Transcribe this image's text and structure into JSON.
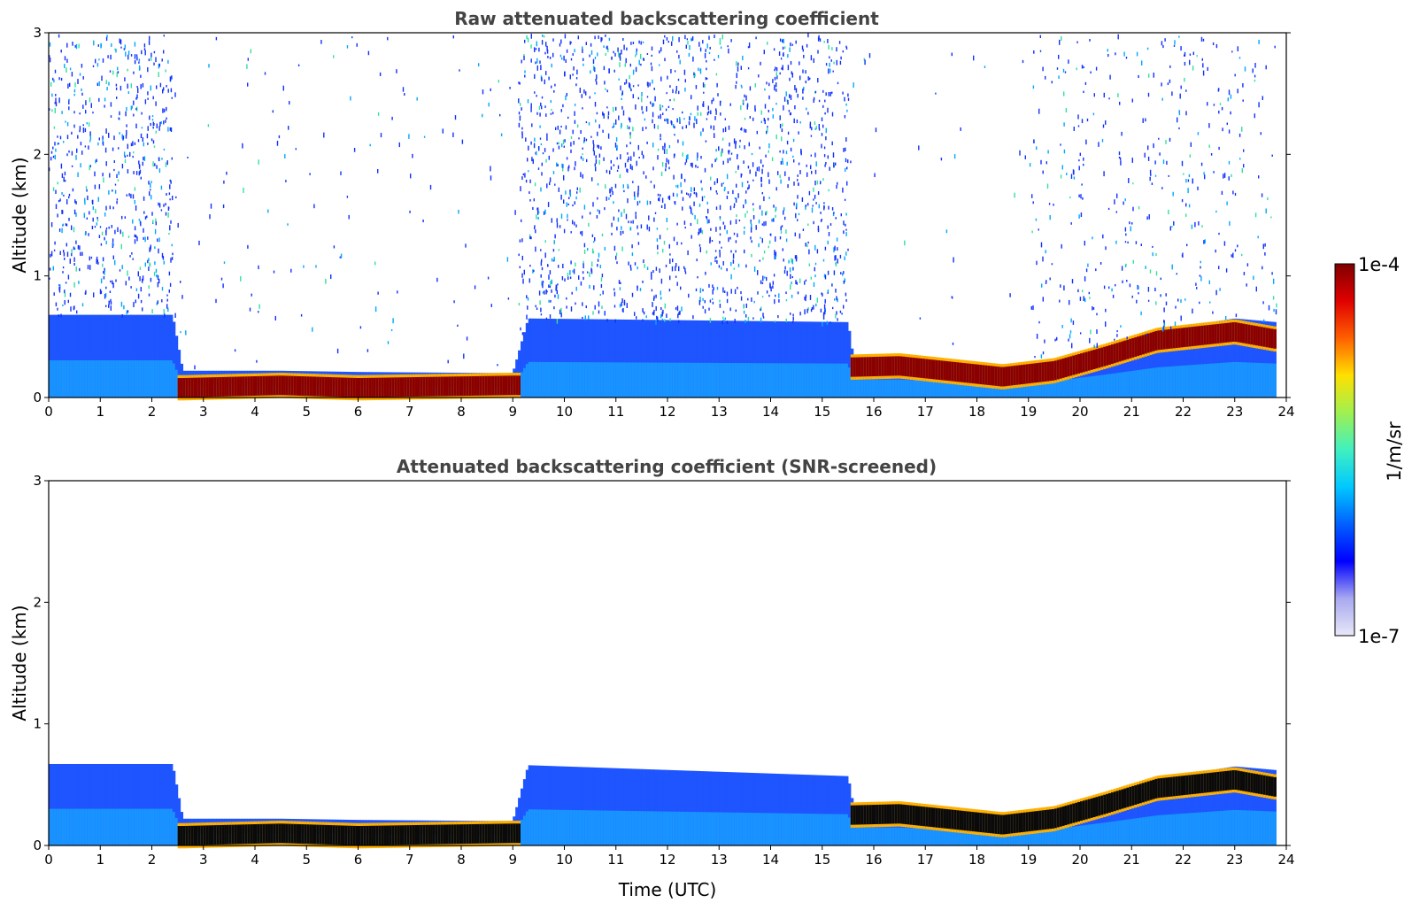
{
  "chart_data": [
    {
      "type": "heatmap",
      "title": "Raw attenuated backscattering coefficient",
      "xlabel": "",
      "ylabel": "Altitude (km)",
      "xlim": [
        0,
        24
      ],
      "ylim": [
        0,
        3
      ],
      "xticks": [
        "0",
        "1",
        "2",
        "3",
        "4",
        "5",
        "6",
        "7",
        "8",
        "9",
        "10",
        "11",
        "12",
        "13",
        "14",
        "15",
        "16",
        "17",
        "18",
        "19",
        "20",
        "21",
        "22",
        "23",
        "24"
      ],
      "yticks": [
        "0",
        "1",
        "2",
        "3"
      ],
      "layers": [
        {
          "t": 0.0,
          "top": 0.68,
          "peak": null
        },
        {
          "t": 2.4,
          "top": 0.68,
          "peak": null
        },
        {
          "t": 2.6,
          "top": 0.22,
          "peak": 0.08
        },
        {
          "t": 4.5,
          "top": 0.22,
          "peak": 0.1
        },
        {
          "t": 6.0,
          "top": 0.21,
          "peak": 0.08
        },
        {
          "t": 9.0,
          "top": 0.2,
          "peak": 0.1
        },
        {
          "t": 9.3,
          "top": 0.65,
          "peak": null
        },
        {
          "t": 15.5,
          "top": 0.62,
          "peak": null
        },
        {
          "t": 15.6,
          "top": 0.33,
          "peak": 0.25
        },
        {
          "t": 16.5,
          "top": 0.33,
          "peak": 0.26
        },
        {
          "t": 18.5,
          "top": 0.24,
          "peak": 0.17
        },
        {
          "t": 19.5,
          "top": 0.3,
          "peak": 0.22
        },
        {
          "t": 20.5,
          "top": 0.42,
          "peak": 0.34
        },
        {
          "t": 21.5,
          "top": 0.55,
          "peak": 0.47
        },
        {
          "t": 23.0,
          "top": 0.65,
          "peak": 0.54
        },
        {
          "t": 23.8,
          "top": 0.62,
          "peak": 0.48
        }
      ]
    },
    {
      "type": "heatmap",
      "title": "Attenuated backscattering coefficient (SNR-screened)",
      "xlabel": "Time (UTC)",
      "ylabel": "Altitude (km)",
      "xlim": [
        0,
        24
      ],
      "ylim": [
        0,
        3
      ],
      "xticks": [
        "0",
        "1",
        "2",
        "3",
        "4",
        "5",
        "6",
        "7",
        "8",
        "9",
        "10",
        "11",
        "12",
        "13",
        "14",
        "15",
        "16",
        "17",
        "18",
        "19",
        "20",
        "21",
        "22",
        "23",
        "24"
      ],
      "yticks": [
        "0",
        "1",
        "2",
        "3"
      ],
      "layers": [
        {
          "t": 0.0,
          "top": 0.67,
          "peak": null
        },
        {
          "t": 2.4,
          "top": 0.67,
          "peak": null
        },
        {
          "t": 2.6,
          "top": 0.22,
          "peak": 0.08
        },
        {
          "t": 4.5,
          "top": 0.22,
          "peak": 0.1
        },
        {
          "t": 6.0,
          "top": 0.21,
          "peak": 0.08
        },
        {
          "t": 9.0,
          "top": 0.2,
          "peak": 0.1
        },
        {
          "t": 9.3,
          "top": 0.66,
          "peak": null
        },
        {
          "t": 15.5,
          "top": 0.57,
          "peak": null
        },
        {
          "t": 15.6,
          "top": 0.33,
          "peak": 0.25
        },
        {
          "t": 16.5,
          "top": 0.33,
          "peak": 0.26
        },
        {
          "t": 18.5,
          "top": 0.24,
          "peak": 0.17
        },
        {
          "t": 19.5,
          "top": 0.3,
          "peak": 0.22
        },
        {
          "t": 20.5,
          "top": 0.42,
          "peak": 0.34
        },
        {
          "t": 21.5,
          "top": 0.55,
          "peak": 0.47
        },
        {
          "t": 23.0,
          "top": 0.65,
          "peak": 0.54
        },
        {
          "t": 23.8,
          "top": 0.62,
          "peak": 0.48
        }
      ]
    }
  ],
  "colorbar": {
    "label": "1/m/sr",
    "max_label": "1e-4",
    "min_label": "1e-7",
    "range": [
      1e-07,
      0.0001
    ],
    "scale": "log",
    "colormap": [
      "#e8e8f8",
      "#a8a8f0",
      "#0000ff",
      "#0060ff",
      "#00c8ff",
      "#40f0c0",
      "#a0f050",
      "#ffe000",
      "#ff6000",
      "#e00000",
      "#800000"
    ]
  }
}
